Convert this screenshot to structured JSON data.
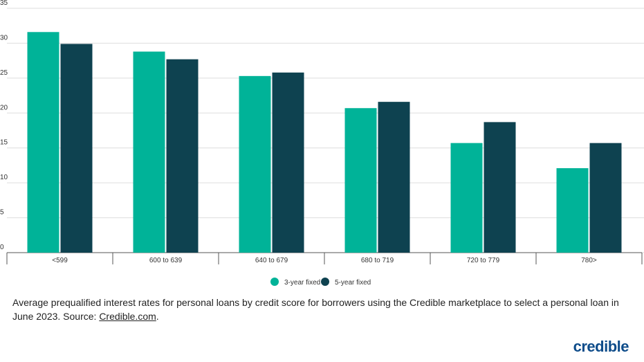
{
  "chart_data": {
    "type": "bar",
    "categories": [
      "<599",
      "600 to 639",
      "640 to 679",
      "680 to 719",
      "720 to 779",
      "780>"
    ],
    "series": [
      {
        "name": "3-year fixed",
        "color": "#00b398",
        "values": [
          31.6,
          28.8,
          25.3,
          20.7,
          15.7,
          12.1
        ]
      },
      {
        "name": "5-year fixed",
        "color": "#0e4250",
        "values": [
          29.9,
          27.7,
          25.8,
          21.6,
          18.7,
          15.7
        ]
      }
    ],
    "ylim": [
      0,
      35
    ],
    "yticks": [
      0,
      5,
      10,
      15,
      20,
      25,
      30,
      35
    ],
    "grid": true,
    "legend": "bottom"
  },
  "caption": {
    "text": "Average prequalified interest rates for personal loans by credit score for borrowers using the Credible marketplace to select a personal loan in June 2023. Source:",
    "link": "Credible.com",
    "end": "."
  },
  "logo": "credible"
}
